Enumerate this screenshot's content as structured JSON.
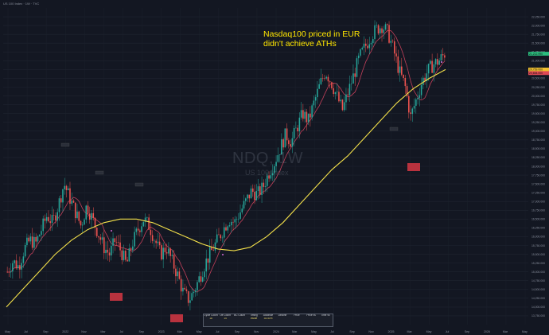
{
  "header": {
    "symbol_line": "US 100 Index · 1W · TVC"
  },
  "chart_data": {
    "type": "candlestick",
    "watermark": {
      "ticker": "NDQ, 1W",
      "name": "US 100 Index"
    },
    "annotation": {
      "line1": "Nasdaq100 priced in EUR",
      "line2": "didn't achieve ATHs"
    },
    "x_ticks": [
      "May",
      "Jul",
      "Sep",
      "2022",
      "Nov",
      "Mar",
      "Jul",
      "Sep",
      "2023",
      "Mar",
      "May",
      "Jul",
      "Sep",
      "Nov",
      "2024",
      "Mar",
      "May",
      "Jul",
      "Sep",
      "Nov",
      "2025",
      "Mar",
      "May",
      "Jul",
      "Sep",
      "2026",
      "Mar",
      "May"
    ],
    "y_ticks": [
      "22,250.000",
      "22,000.000",
      "21,750.000",
      "21,500.000",
      "21,250.000",
      "21,000.000",
      "20,750.000",
      "20,500.000",
      "20,250.000",
      "20,000.000",
      "19,750.000",
      "19,500.000",
      "19,250.000",
      "19,000.000",
      "18,750.000",
      "18,500.000",
      "18,250.000",
      "18,000.000",
      "17,750.000",
      "17,500.000",
      "17,250.000",
      "17,000.000",
      "16,750.000",
      "16,500.000",
      "16,250.000",
      "16,000.000",
      "15,750.000",
      "15,500.000",
      "15,250.000",
      "15,000.000",
      "14,750.000",
      "14,500.000",
      "14,250.000",
      "14,000.000",
      "13,750.000"
    ],
    "ylim": [
      13500,
      22500
    ],
    "price_labels": [
      {
        "value": 21200,
        "label": "21,212.990",
        "color": "#2bbd7e"
      },
      {
        "value": 20750,
        "label": "20,759.000",
        "color": "#f0c030"
      },
      {
        "value": 20650,
        "label": "20,654.000",
        "color": "#e04a56"
      }
    ],
    "close_path": [
      15000,
      15300,
      15150,
      15650,
      15900,
      15800,
      16200,
      16600,
      16400,
      16900,
      17500,
      17100,
      16700,
      16300,
      16900,
      16500,
      16100,
      15700,
      15500,
      15900,
      15600,
      15200,
      15800,
      16200,
      16500,
      16300,
      15900,
      15500,
      15700,
      15300,
      14900,
      14400,
      14200,
      14500,
      14900,
      15300,
      15600,
      15900,
      16200,
      16500,
      16400,
      16700,
      17000,
      17300,
      17200,
      17400,
      17800,
      18100,
      18500,
      18900,
      18700,
      19100,
      19500,
      19300,
      19800,
      20300,
      20700,
      20400,
      20000,
      19600,
      20100,
      20600,
      21100,
      21400,
      21700,
      21900,
      22000,
      21800,
      21300,
      20700,
      20300,
      19400,
      19900,
      20400,
      20700,
      20900,
      21000,
      21200
    ],
    "long_ma": [
      14000,
      14500,
      15000,
      15500,
      15900,
      16200,
      16400,
      16500,
      16500,
      16400,
      16200,
      16000,
      15800,
      15650,
      15600,
      15700,
      16000,
      16400,
      16900,
      17400,
      17900,
      18300,
      18800,
      19300,
      19800,
      20200,
      20500,
      20750
    ],
    "short_ma_color": "#c2405a",
    "long_ma_color": "#f3e04a",
    "up_color": "#26a69a",
    "down_color": "#ef5350",
    "stats": [
      [
        "Cycle Count",
        "18"
      ],
      [
        "Off Count",
        "14"
      ],
      [
        "BC Count",
        ""
      ],
      [
        "Timing",
        "Inside"
      ],
      [
        "Advance",
        "34.40%"
      ],
      [
        "Decline",
        ""
      ],
      [
        "Price",
        ""
      ],
      [
        "Price vs",
        ""
      ],
      [
        "Time vs",
        ""
      ]
    ]
  }
}
